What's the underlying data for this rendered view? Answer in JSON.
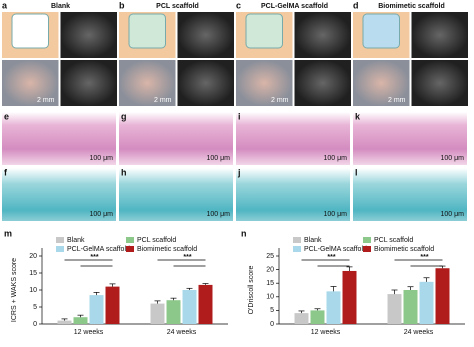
{
  "panels": [
    {
      "letter": "a",
      "title": "Blank",
      "scale": "2 mm"
    },
    {
      "letter": "b",
      "title": "PCL scaffold",
      "scale": "2 mm"
    },
    {
      "letter": "c",
      "title": "PCL-GelMA scaffold",
      "scale": "2 mm"
    },
    {
      "letter": "d",
      "title": "Biomimetic scaffold",
      "scale": "2 mm"
    }
  ],
  "he_row": [
    {
      "letter": "e",
      "scale": "100 μm"
    },
    {
      "letter": "g",
      "scale": "100 μm"
    },
    {
      "letter": "i",
      "scale": "100 μm"
    },
    {
      "letter": "k",
      "scale": "100 μm"
    }
  ],
  "safranin_row": [
    {
      "letter": "f",
      "scale": "100 μm"
    },
    {
      "letter": "h",
      "scale": "100 μm"
    },
    {
      "letter": "j",
      "scale": "100 μm"
    },
    {
      "letter": "l",
      "scale": "100 μm"
    }
  ],
  "chart_data": [
    {
      "type": "bar",
      "panel": "m",
      "ylabel": "ICRS + WAKS score",
      "categories": [
        "12 weeks",
        "24 weeks"
      ],
      "series": [
        {
          "name": "Blank",
          "color": "#c8c8c8",
          "values": [
            1,
            6
          ],
          "errors": [
            0.5,
            0.8
          ]
        },
        {
          "name": "PCL scaffold",
          "color": "#8cc88a",
          "values": [
            2,
            7
          ],
          "errors": [
            0.6,
            0.6
          ]
        },
        {
          "name": "PCL-GelMA scaffold",
          "color": "#a8d8ea",
          "values": [
            8.5,
            10
          ],
          "errors": [
            0.8,
            0.5
          ]
        },
        {
          "name": "Biomimetic scaffold",
          "color": "#b01c1c",
          "values": [
            11,
            11.5
          ],
          "errors": [
            0.8,
            0.4
          ]
        }
      ],
      "ylim": [
        0,
        20
      ],
      "yticks": [
        0,
        5,
        10,
        15,
        20
      ],
      "annotations": [
        "***",
        "***"
      ]
    },
    {
      "type": "bar",
      "panel": "n",
      "ylabel": "O'Driscoll score",
      "categories": [
        "12 weeks",
        "24 weeks"
      ],
      "series": [
        {
          "name": "Blank",
          "color": "#c8c8c8",
          "values": [
            4,
            11
          ],
          "errors": [
            0.8,
            1.5
          ]
        },
        {
          "name": "PCL scaffold",
          "color": "#8cc88a",
          "values": [
            5,
            12.5
          ],
          "errors": [
            0.6,
            1.2
          ]
        },
        {
          "name": "PCL-GelMA scaffold",
          "color": "#a8d8ea",
          "values": [
            12,
            15.5
          ],
          "errors": [
            1.8,
            1.5
          ]
        },
        {
          "name": "Biomimetic scaffold",
          "color": "#b01c1c",
          "values": [
            19.5,
            20.5
          ],
          "errors": [
            1.5,
            0.8
          ]
        }
      ],
      "ylim": [
        0,
        25
      ],
      "yticks": [
        0,
        5,
        10,
        15,
        20,
        25
      ],
      "annotations": [
        "***",
        "***"
      ]
    }
  ]
}
